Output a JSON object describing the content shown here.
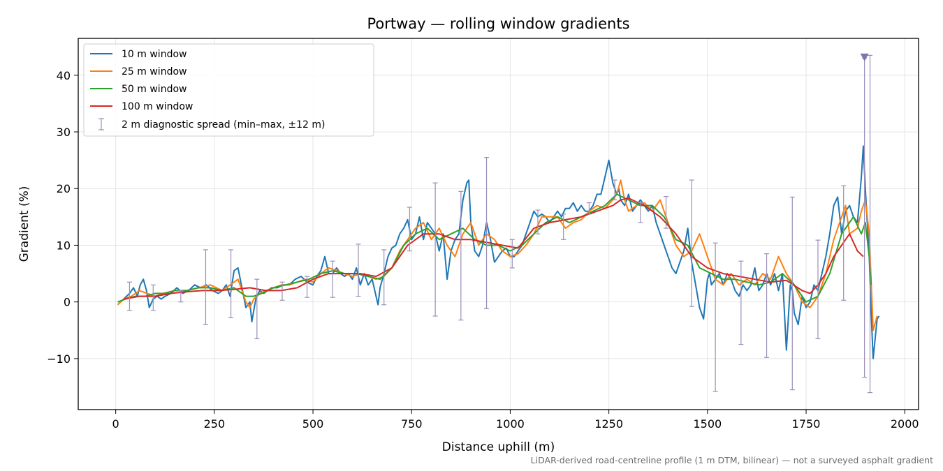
{
  "chart_data": {
    "type": "line",
    "title": "Portway — rolling window gradients",
    "xlabel": "Distance uphill (m)",
    "ylabel": "Gradient (%)",
    "xlim": [
      -95,
      2035
    ],
    "ylim": [
      -19,
      46.5
    ],
    "xticks": [
      0,
      250,
      500,
      750,
      1000,
      1250,
      1500,
      1750,
      2000
    ],
    "yticks": [
      -10,
      0,
      10,
      20,
      30,
      40
    ],
    "grid": true,
    "legend_position": "top-left",
    "footnote": "LiDAR-derived road-centreline profile (1 m DTM, bilinear) — not a surveyed asphalt gradient",
    "series": [
      {
        "name": "10 m window",
        "color": "#1f77b4",
        "x": [
          5,
          20,
          35,
          45,
          55,
          62,
          70,
          78,
          85,
          95,
          105,
          115,
          125,
          140,
          155,
          170,
          185,
          200,
          215,
          230,
          245,
          260,
          270,
          280,
          290,
          300,
          310,
          320,
          330,
          340,
          345,
          355,
          365,
          375,
          385,
          395,
          410,
          425,
          440,
          455,
          470,
          485,
          500,
          510,
          520,
          530,
          540,
          550,
          560,
          570,
          580,
          590,
          600,
          610,
          620,
          630,
          640,
          650,
          660,
          665,
          670,
          680,
          690,
          700,
          710,
          720,
          730,
          740,
          750,
          760,
          770,
          780,
          790,
          800,
          810,
          820,
          830,
          840,
          850,
          860,
          870,
          880,
          890,
          895,
          900,
          910,
          920,
          930,
          940,
          950,
          960,
          970,
          980,
          990,
          1000,
          1010,
          1020,
          1030,
          1040,
          1050,
          1060,
          1070,
          1080,
          1090,
          1100,
          1110,
          1120,
          1130,
          1140,
          1150,
          1160,
          1170,
          1180,
          1190,
          1200,
          1210,
          1220,
          1230,
          1240,
          1250,
          1260,
          1270,
          1275,
          1280,
          1290,
          1300,
          1310,
          1320,
          1330,
          1340,
          1350,
          1360,
          1370,
          1380,
          1390,
          1400,
          1410,
          1420,
          1430,
          1440,
          1450,
          1460,
          1470,
          1480,
          1490,
          1500,
          1505,
          1510,
          1520,
          1530,
          1540,
          1550,
          1560,
          1570,
          1580,
          1590,
          1600,
          1610,
          1620,
          1630,
          1640,
          1650,
          1660,
          1670,
          1680,
          1690,
          1700,
          1710,
          1715,
          1720,
          1730,
          1740,
          1750,
          1760,
          1770,
          1780,
          1790,
          1800,
          1810,
          1820,
          1830,
          1840,
          1850,
          1860,
          1870,
          1880,
          1890,
          1895,
          1900,
          1910,
          1915,
          1920,
          1930,
          1935
        ],
        "y": [
          -0.5,
          0.5,
          1.5,
          2.5,
          1,
          3,
          4,
          2,
          -1,
          0.5,
          1,
          0.5,
          1,
          1.5,
          2.5,
          1.5,
          2,
          3,
          2.5,
          3,
          2,
          1.5,
          2,
          3,
          1,
          5.5,
          6,
          2.5,
          -1,
          0,
          -3.5,
          0.5,
          2,
          1.5,
          2,
          2.5,
          2.5,
          3,
          3,
          4,
          4.5,
          3.5,
          3,
          4.5,
          5.5,
          8,
          5,
          5,
          6,
          5,
          4.5,
          5,
          4,
          6,
          3,
          5,
          3,
          4,
          1,
          -0.5,
          2.5,
          5,
          8,
          9.5,
          10,
          12,
          13,
          14.5,
          11,
          12,
          15,
          11,
          14,
          13,
          12,
          9,
          12,
          4,
          9,
          11,
          12,
          18,
          21,
          21.5,
          14,
          9,
          8,
          10,
          14,
          11,
          7,
          8,
          9,
          9.5,
          8,
          8,
          9,
          10,
          12,
          14,
          16,
          15,
          15.5,
          15,
          14,
          15,
          16,
          15,
          16.5,
          16.5,
          17.5,
          16,
          17,
          16,
          16,
          17,
          19,
          19,
          22,
          25,
          21,
          19,
          20,
          18,
          17,
          19,
          16,
          17,
          18,
          17,
          16,
          17,
          14,
          12,
          10,
          8,
          6,
          5,
          7,
          9,
          13,
          7,
          3,
          -1,
          -3,
          4,
          5,
          3,
          4,
          5,
          3,
          5,
          4,
          2,
          1,
          3,
          2,
          3,
          6,
          2,
          3,
          5,
          3,
          5,
          2,
          5,
          -8.5,
          3,
          2,
          -2,
          -4,
          1,
          -1,
          0,
          3,
          2,
          5,
          8,
          12,
          17,
          18.5,
          12,
          16,
          17,
          15,
          14,
          22,
          27.5,
          20,
          8,
          -2,
          -10,
          -3,
          -2.5
        ],
        "lw": 2
      },
      {
        "name": "25 m window",
        "color": "#ff7f0e",
        "x": [
          5,
          20,
          40,
          60,
          80,
          100,
          120,
          150,
          180,
          210,
          240,
          270,
          290,
          300,
          310,
          320,
          330,
          340,
          350,
          365,
          380,
          400,
          420,
          440,
          460,
          480,
          500,
          520,
          540,
          560,
          580,
          600,
          620,
          640,
          660,
          680,
          700,
          720,
          740,
          760,
          780,
          800,
          820,
          840,
          860,
          880,
          900,
          920,
          940,
          960,
          980,
          1000,
          1020,
          1040,
          1060,
          1080,
          1100,
          1120,
          1140,
          1160,
          1180,
          1200,
          1220,
          1240,
          1260,
          1270,
          1280,
          1290,
          1300,
          1320,
          1340,
          1360,
          1380,
          1400,
          1420,
          1440,
          1460,
          1480,
          1500,
          1520,
          1540,
          1560,
          1580,
          1600,
          1620,
          1640,
          1660,
          1680,
          1700,
          1720,
          1740,
          1760,
          1780,
          1800,
          1820,
          1840,
          1850,
          1860,
          1880,
          1890,
          1900,
          1910,
          1920,
          1930
        ],
        "y": [
          -0.5,
          0.5,
          1,
          2,
          1.5,
          1,
          1.5,
          2,
          2,
          2.5,
          3,
          2,
          3,
          3.5,
          4,
          2,
          0,
          -1,
          0.5,
          1.5,
          2,
          2.5,
          3,
          3,
          3.5,
          4,
          3.5,
          5,
          6,
          5.5,
          5,
          4.5,
          5,
          4.5,
          4,
          4.5,
          6,
          9,
          11,
          13,
          14,
          11,
          13,
          10,
          8,
          12,
          14,
          10,
          12,
          11,
          9,
          8,
          8.5,
          10,
          12,
          15,
          15,
          15,
          13,
          14,
          14.5,
          16,
          17,
          16.5,
          18,
          19,
          21.5,
          18,
          16,
          17,
          17.5,
          16,
          18,
          14,
          10,
          8,
          9,
          12,
          8,
          4,
          3,
          5,
          3,
          4,
          3,
          5,
          4,
          8,
          5,
          3,
          0,
          -1,
          1,
          5,
          11,
          15,
          17,
          12,
          13,
          16,
          18,
          12,
          -5,
          -2.5
        ],
        "lw": 2
      },
      {
        "name": "50 m window",
        "color": "#2ca02c",
        "x": [
          5,
          25,
          50,
          75,
          100,
          125,
          150,
          180,
          210,
          240,
          270,
          300,
          330,
          350,
          370,
          400,
          430,
          460,
          490,
          520,
          550,
          580,
          610,
          640,
          670,
          700,
          730,
          760,
          790,
          820,
          850,
          880,
          910,
          940,
          970,
          1000,
          1030,
          1060,
          1090,
          1120,
          1150,
          1180,
          1210,
          1240,
          1270,
          1300,
          1330,
          1360,
          1390,
          1420,
          1450,
          1480,
          1510,
          1540,
          1570,
          1600,
          1630,
          1660,
          1690,
          1720,
          1750,
          1780,
          1810,
          1840,
          1870,
          1890,
          1900,
          1910,
          1915
        ],
        "y": [
          0,
          0.5,
          1,
          1,
          1.5,
          1.5,
          2,
          2,
          2.5,
          2.5,
          2,
          2.5,
          1,
          1,
          1.5,
          2.5,
          3,
          3.5,
          4,
          5,
          5.5,
          5,
          5,
          4.5,
          4,
          6,
          10,
          12,
          13,
          11,
          12,
          13,
          11,
          10,
          10,
          9,
          10,
          12,
          14,
          15,
          14,
          15,
          16,
          17,
          19,
          18,
          17,
          17,
          15,
          11,
          10,
          6,
          5,
          4,
          4,
          3.5,
          3,
          3.5,
          5,
          3,
          0,
          1,
          5,
          12,
          15,
          12,
          14,
          8,
          3
        ],
        "lw": 2
      },
      {
        "name": "100 m window",
        "color": "#d62728",
        "x": [
          20,
          60,
          100,
          140,
          180,
          220,
          260,
          300,
          340,
          380,
          420,
          460,
          500,
          540,
          580,
          620,
          660,
          700,
          740,
          780,
          820,
          860,
          900,
          940,
          980,
          1020,
          1060,
          1100,
          1140,
          1180,
          1220,
          1260,
          1280,
          1300,
          1340,
          1380,
          1420,
          1460,
          1500,
          1540,
          1580,
          1620,
          1660,
          1700,
          1740,
          1760,
          1780,
          1800,
          1820,
          1840,
          1860,
          1880,
          1895
        ],
        "y": [
          0.5,
          1,
          1,
          1.5,
          1.8,
          2,
          2,
          2.2,
          2.5,
          2,
          2,
          2.5,
          4,
          5,
          5,
          5,
          4.5,
          6,
          10,
          12,
          12,
          11,
          11,
          10.5,
          10,
          9.5,
          13,
          14,
          14.5,
          15,
          16,
          17,
          18,
          18.3,
          17,
          15,
          12,
          8,
          6,
          5,
          4.5,
          4,
          3.5,
          3.8,
          2,
          1.5,
          3,
          5,
          8,
          10,
          12,
          9,
          8
        ],
        "lw": 2
      }
    ],
    "spread": {
      "name": "2 m diagnostic spread (min–max, ±12 m)",
      "color": "#9b8fba",
      "bars": [
        [
          35,
          -1.5,
          3.5
        ],
        [
          95,
          -1.5,
          3
        ],
        [
          165,
          0,
          2
        ],
        [
          228,
          -4,
          9.2
        ],
        [
          292,
          -2.8,
          9.2
        ],
        [
          358,
          -6.5,
          4
        ],
        [
          422,
          0.3,
          3.5
        ],
        [
          485,
          0.8,
          4.5
        ],
        [
          550,
          0.8,
          7.2
        ],
        [
          615,
          1,
          10.2
        ],
        [
          680,
          -0.5,
          9.2
        ],
        [
          745,
          9,
          16.7
        ],
        [
          810,
          -2.5,
          21
        ],
        [
          875,
          -3.2,
          19.5
        ],
        [
          940,
          -1.2,
          25.5
        ],
        [
          1005,
          6,
          11
        ],
        [
          1070,
          12,
          16.2
        ],
        [
          1135,
          11,
          15.5
        ],
        [
          1200,
          15.5,
          17.5
        ],
        [
          1265,
          18,
          21.5
        ],
        [
          1330,
          14,
          17.5
        ],
        [
          1395,
          13,
          18.6
        ],
        [
          1460,
          -0.8,
          21.5
        ],
        [
          1520,
          -15.8,
          10.4
        ],
        [
          1585,
          -7.5,
          7.2
        ],
        [
          1650,
          -9.8,
          8.5
        ],
        [
          1715,
          -15.5,
          18.5
        ],
        [
          1780,
          -6.5,
          10.9
        ],
        [
          1845,
          0.3,
          20.5
        ],
        [
          1898,
          -13.3,
          43
        ],
        [
          1912,
          -16,
          43.5
        ]
      ],
      "marker": {
        "x": 1898,
        "y": 43.2,
        "color": "#8074a8"
      }
    }
  }
}
